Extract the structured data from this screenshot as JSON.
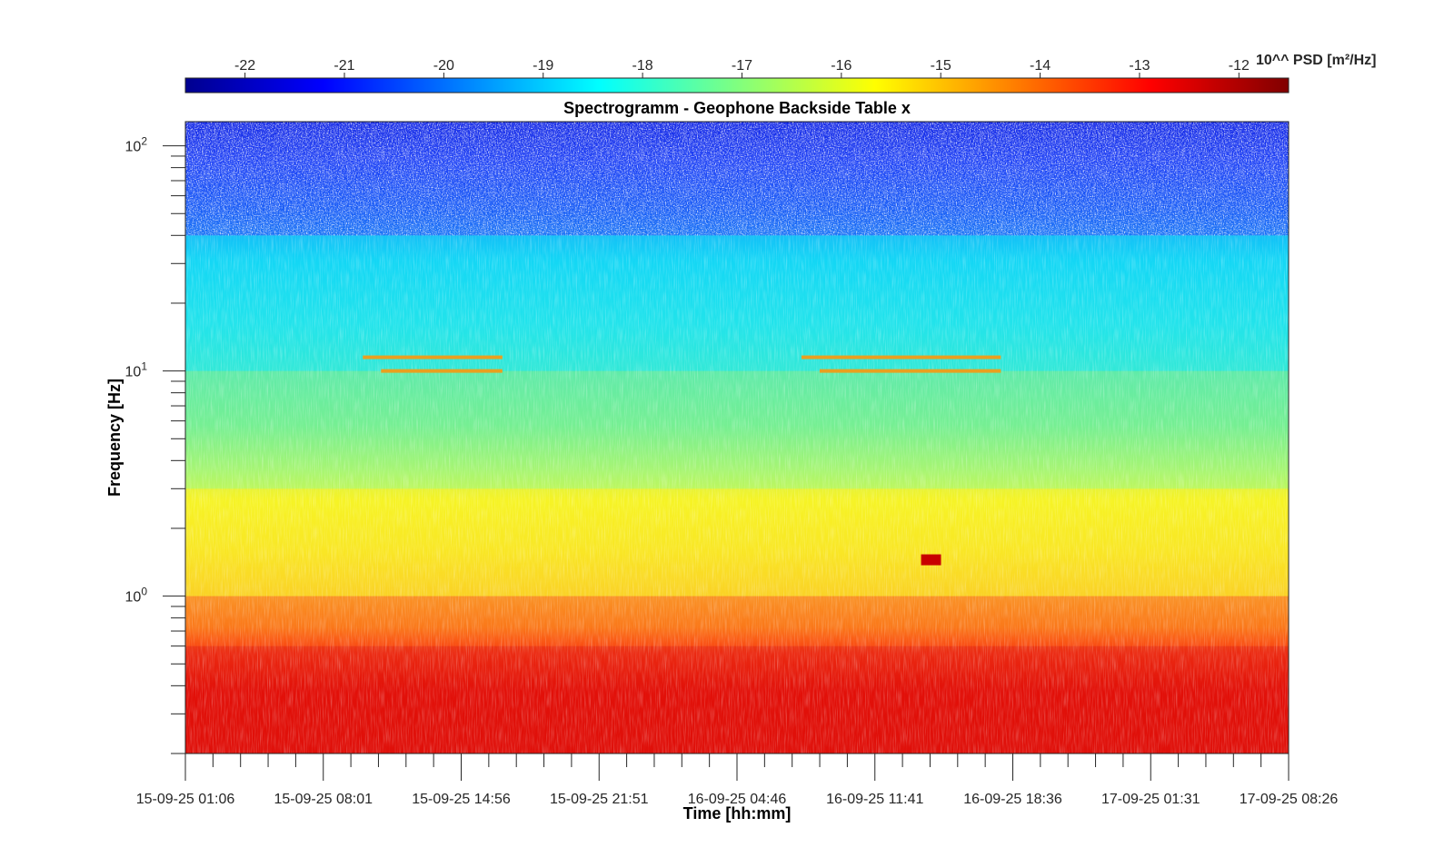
{
  "chart_data": {
    "type": "heatmap",
    "title": "Spectrogramm - Geophone Backside Table x",
    "xlabel": "Time [hh:mm]",
    "ylabel": "Frequency [Hz]",
    "yscale": "log",
    "ylim": [
      0.2,
      128
    ],
    "x_ticks": [
      "15-09-25 01:06",
      "15-09-25 08:01",
      "15-09-25 14:56",
      "15-09-25 21:51",
      "16-09-25 04:46",
      "16-09-25 11:41",
      "16-09-25 18:36",
      "17-09-25 01:31",
      "17-09-25 08:26"
    ],
    "y_ticks": [
      {
        "base": "10",
        "exp": "0",
        "value": 1
      },
      {
        "base": "10",
        "exp": "1",
        "value": 10
      },
      {
        "base": "10",
        "exp": "2",
        "value": 100
      }
    ],
    "colorbar": {
      "label": "10^^ PSD [m²/Hz]",
      "ticks": [
        -22,
        -21,
        -20,
        -19,
        -18,
        -17,
        -16,
        -15,
        -14,
        -13,
        -12
      ],
      "range": [
        -22.6,
        -11.5
      ],
      "colormap": "jet"
    },
    "bands": [
      {
        "f_low": 0.2,
        "f_high": 0.6,
        "level": -12.5
      },
      {
        "f_low": 0.6,
        "f_high": 1.0,
        "level": -13.5
      },
      {
        "f_low": 1.0,
        "f_high": 3.0,
        "level": -15.5
      },
      {
        "f_low": 3.0,
        "f_high": 10,
        "level": -17.0
      },
      {
        "f_low": 10,
        "f_high": 40,
        "level": -18.5
      },
      {
        "f_low": 40,
        "f_high": 128,
        "level": -21.0
      }
    ],
    "features": [
      {
        "label": "lines ~11.5 Hz and ~10 Hz",
        "t_start": "15-09-25 10:00",
        "t_end": "15-09-25 17:00"
      },
      {
        "label": "lines ~11.5 Hz and ~10 Hz",
        "t_start": "16-09-25 08:00",
        "t_end": "16-09-25 18:00"
      },
      {
        "label": "peak ~1.4 Hz",
        "t_start": "16-09-25 14:00",
        "t_end": "16-09-25 15:00"
      }
    ]
  }
}
